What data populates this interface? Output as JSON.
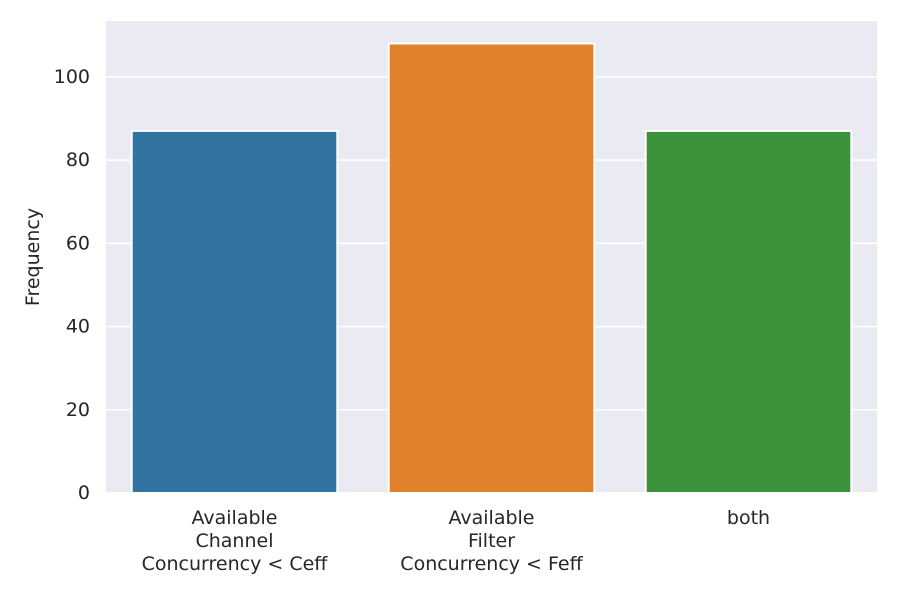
{
  "chart_data": {
    "type": "bar",
    "title": "",
    "xlabel": "",
    "ylabel": "Frequency",
    "categories": [
      [
        "Available",
        "Channel",
        "Concurrency < Ceff"
      ],
      [
        "Available",
        "Filter",
        "Concurrency < Feff"
      ],
      [
        "both"
      ]
    ],
    "values": [
      87,
      108,
      87
    ],
    "colors": [
      "#3274a1",
      "#e1812c",
      "#3a923a"
    ],
    "ylim": [
      0,
      113.4
    ],
    "yticks": [
      0,
      20,
      40,
      60,
      80,
      100
    ],
    "grid": true,
    "background": "#eaeaf2"
  }
}
